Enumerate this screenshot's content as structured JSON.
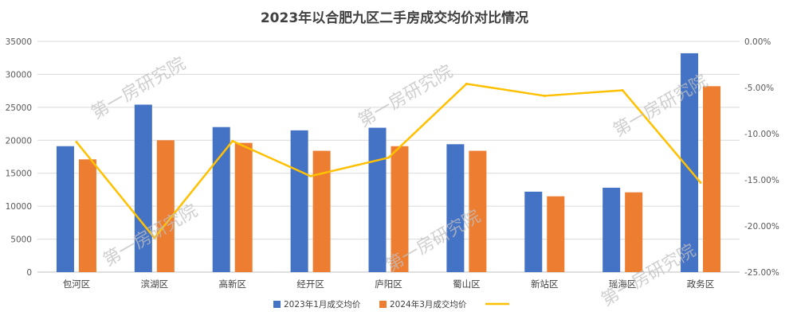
{
  "chart_data": {
    "type": "bar",
    "title": "2023年以合肥九区二手房成交均价对比情况",
    "categories": [
      "包河区",
      "滨湖区",
      "高新区",
      "经开区",
      "庐阳区",
      "蜀山区",
      "新站区",
      "瑶海区",
      "政务区"
    ],
    "series": [
      {
        "name": "2023年1月成交均价",
        "type": "bar",
        "axis": "left",
        "color": "#4472C4",
        "values": [
          19100,
          25400,
          22000,
          21500,
          21900,
          19400,
          12200,
          12800,
          33200
        ]
      },
      {
        "name": "2024年3月成交均价",
        "type": "bar",
        "axis": "left",
        "color": "#ED7D31",
        "values": [
          17100,
          20000,
          19600,
          18400,
          19100,
          18400,
          11500,
          12100,
          28200
        ]
      },
      {
        "name": "",
        "type": "line",
        "axis": "right",
        "color": "#FFC000",
        "values": [
          -10.9,
          -21.3,
          -10.8,
          -14.6,
          -12.6,
          -4.6,
          -5.9,
          -5.3,
          -15.3
        ]
      }
    ],
    "ylim": [
      0,
      35000
    ],
    "yticks": [
      "0",
      "5000",
      "10000",
      "15000",
      "20000",
      "25000",
      "30000",
      "35000"
    ],
    "y2lim": [
      -25,
      0
    ],
    "y2ticks": [
      "0.00%",
      "-5.00%",
      "-10.00%",
      "-15.00%",
      "-20.00%",
      "-25.00%"
    ],
    "grid": true,
    "legend": "bottom"
  },
  "watermark": "第一房研究院",
  "colors": {
    "grid": "#d9d9d9",
    "axis": "#bfbfbf"
  }
}
